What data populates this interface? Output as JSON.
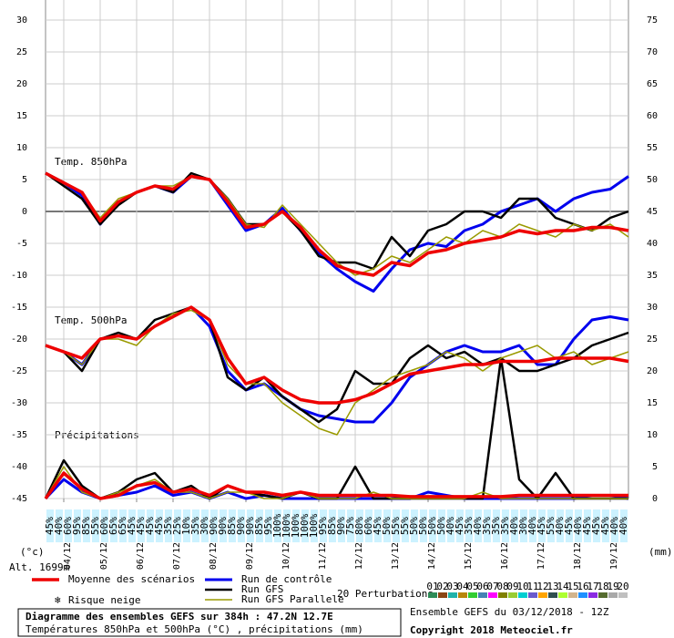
{
  "chart_data": {
    "type": "line",
    "title": "Diagramme des ensembles GEFS sur 384h : 47.2N 12.7E",
    "subtitle": "Températures 850hPa et 500hPa (°C) , précipitations (mm)",
    "run_info": "Ensemble GEFS du 03/12/2018 - 12Z",
    "copyright": "Copyright 2018 Meteociel.fr",
    "altitude": "Alt. 1699m",
    "y_unit": "(°c)",
    "y2_unit": "(mm)",
    "panel_labels": [
      "Temp. 850hPa",
      "Temp. 500hPa",
      "Précipitations"
    ],
    "snow_label": "Risque neige",
    "perturbations_label": "20 Perturbations",
    "perturbations": [
      {
        "label": "01",
        "color": "#2e8b57"
      },
      {
        "label": "02",
        "color": "#8b4513"
      },
      {
        "label": "03",
        "color": "#20b2aa"
      },
      {
        "label": "04",
        "color": "#b8860b"
      },
      {
        "label": "05",
        "color": "#32cd32"
      },
      {
        "label": "06",
        "color": "#4682b4"
      },
      {
        "label": "07",
        "color": "#ff00ff"
      },
      {
        "label": "08",
        "color": "#808000"
      },
      {
        "label": "09",
        "color": "#9acd32"
      },
      {
        "label": "10",
        "color": "#00ced1"
      },
      {
        "label": "11",
        "color": "#6a5acd"
      },
      {
        "label": "12",
        "color": "#ffa500"
      },
      {
        "label": "13",
        "color": "#2f4f4f"
      },
      {
        "label": "14",
        "color": "#adff2f"
      },
      {
        "label": "15",
        "color": "#d2b48c"
      },
      {
        "label": "16",
        "color": "#1e90ff"
      },
      {
        "label": "17",
        "color": "#8a2be2"
      },
      {
        "label": "18",
        "color": "#556b2f"
      },
      {
        "label": "19",
        "color": "#a9a9a9"
      },
      {
        "label": "20",
        "color": "#c0c0c0"
      }
    ],
    "xlim": [
      0,
      384
    ],
    "x": [
      0,
      12,
      24,
      36,
      48,
      60,
      72,
      84,
      96,
      108,
      120,
      132,
      144,
      156,
      168,
      180,
      192,
      204,
      216,
      228,
      240,
      252,
      264,
      276,
      288,
      300,
      312,
      324,
      336,
      348,
      360,
      372,
      384
    ],
    "xticks": [
      {
        "value": 12,
        "label": "04/12"
      },
      {
        "value": 36,
        "label": "05/12"
      },
      {
        "value": 60,
        "label": "06/12"
      },
      {
        "value": 84,
        "label": "07/12"
      },
      {
        "value": 108,
        "label": "08/12"
      },
      {
        "value": 132,
        "label": "09/12"
      },
      {
        "value": 156,
        "label": "10/12"
      },
      {
        "value": 180,
        "label": "11/12"
      },
      {
        "value": 204,
        "label": "12/12"
      },
      {
        "value": 228,
        "label": "13/12"
      },
      {
        "value": 252,
        "label": "14/12"
      },
      {
        "value": 276,
        "label": "15/12"
      },
      {
        "value": 300,
        "label": "16/12"
      },
      {
        "value": 324,
        "label": "17/12"
      },
      {
        "value": 348,
        "label": "18/12"
      },
      {
        "value": 372,
        "label": "19/12"
      }
    ],
    "ylim": [
      -45,
      30
    ],
    "yticks": [
      -45,
      -40,
      -35,
      -30,
      -25,
      -20,
      -15,
      -10,
      -5,
      0,
      5,
      10,
      15,
      20,
      25,
      30
    ],
    "y2lim": [
      0,
      75
    ],
    "y2ticks": [
      0,
      5,
      10,
      15,
      20,
      25,
      30,
      35,
      40,
      45,
      50,
      55,
      60,
      65,
      70,
      75
    ],
    "grid": true,
    "series": [
      {
        "name": "Run de contrôle",
        "color": "#0000ee",
        "width": 3,
        "t850": [
          6,
          4.5,
          2.5,
          -2,
          1.5,
          3,
          4,
          3,
          5.5,
          5,
          1,
          -3,
          -2,
          0.5,
          -3,
          -6.5,
          -9,
          -11,
          -12.5,
          -9,
          -6,
          -5,
          -5.5,
          -3,
          -2,
          0,
          1,
          2,
          0,
          2,
          3,
          3.5,
          5.5
        ],
        "t500": [
          -21,
          -22,
          -24,
          -20,
          -19.5,
          -20,
          -18,
          -16.5,
          -15,
          -18,
          -25,
          -28,
          -27,
          -29,
          -31,
          -32,
          -32.5,
          -33,
          -33,
          -30,
          -26,
          -24,
          -22,
          -21,
          -22,
          -22,
          -21,
          -24,
          -24,
          -20,
          -17,
          -16.5,
          -17
        ],
        "precip": [
          0,
          3,
          1,
          0,
          0.5,
          1,
          2,
          0.5,
          1,
          0,
          1,
          0,
          0.5,
          0,
          0,
          0,
          0,
          0,
          0,
          0,
          0,
          1,
          0.5,
          0,
          0,
          0,
          0,
          0,
          0,
          0,
          0.5,
          0.5,
          0
        ]
      },
      {
        "name": "Run GFS",
        "color": "#000000",
        "width": 2.5,
        "t850": [
          6,
          4,
          2,
          -2,
          1,
          3,
          4,
          3,
          6,
          5,
          2,
          -2,
          -2,
          0,
          -3,
          -7,
          -8,
          -8,
          -9,
          -4,
          -7,
          -3,
          -2,
          0,
          0,
          -1,
          2,
          2,
          -1,
          -2,
          -3,
          -1,
          0
        ],
        "t500": [
          -21,
          -22,
          -25,
          -20,
          -19,
          -20,
          -17,
          -16,
          -15,
          -17,
          -26,
          -28,
          -26,
          -29,
          -31,
          -33,
          -31,
          -25,
          -27,
          -27,
          -23,
          -21,
          -23,
          -22,
          -24,
          -23,
          -25,
          -25,
          -24,
          -23,
          -21,
          -20,
          -19
        ],
        "precip": [
          0,
          6,
          2,
          0,
          1,
          3,
          4,
          1,
          2,
          0,
          2,
          1,
          0.5,
          0,
          1,
          0,
          0,
          5,
          0,
          0,
          0,
          0,
          0,
          0,
          0,
          22,
          3,
          0,
          4,
          0,
          0,
          0,
          0
        ]
      },
      {
        "name": "Run GFS Parallele",
        "color": "#9a9a00",
        "width": 1.5,
        "t850": [
          6,
          4.5,
          3,
          -1,
          2,
          3,
          4,
          4,
          5.5,
          5,
          2,
          -2,
          -2.5,
          1,
          -2,
          -5,
          -8,
          -10,
          -9,
          -7,
          -8,
          -6,
          -4,
          -5,
          -3,
          -4,
          -2,
          -3,
          -4,
          -2,
          -3,
          -2,
          -4
        ],
        "t500": [
          -21,
          -22,
          -24,
          -20,
          -20,
          -21,
          -18,
          -16,
          -15.5,
          -17,
          -24,
          -27,
          -27,
          -30,
          -32,
          -34,
          -35,
          -30,
          -28,
          -26,
          -25,
          -24,
          -22,
          -23,
          -25,
          -23,
          -22,
          -21,
          -23,
          -22,
          -24,
          -23,
          -22
        ],
        "precip": [
          0,
          5,
          1,
          0,
          1,
          2,
          3,
          1,
          1,
          0,
          1,
          1,
          0,
          0,
          1,
          0,
          0,
          0,
          1,
          0,
          0,
          0,
          0,
          0,
          1,
          0,
          0,
          0,
          0,
          0,
          0,
          0,
          0
        ]
      },
      {
        "name": "Moyenne des scénarios",
        "color": "#ee0000",
        "width": 3.5,
        "t850": [
          6,
          4.5,
          3,
          -1.5,
          1.5,
          3,
          4,
          3.5,
          5.5,
          5,
          1.5,
          -2.5,
          -2,
          0,
          -2.5,
          -6,
          -8.5,
          -9.5,
          -10,
          -8,
          -8.5,
          -6.5,
          -6,
          -5,
          -4.5,
          -4,
          -3,
          -3.5,
          -3,
          -3,
          -2.5,
          -2.5,
          -3
        ],
        "t500": [
          -21,
          -22,
          -23,
          -20,
          -19.5,
          -20,
          -18,
          -16.5,
          -15,
          -17,
          -23,
          -27,
          -26,
          -28,
          -29.5,
          -30,
          -30,
          -29.5,
          -28.5,
          -27,
          -25.5,
          -25,
          -24.5,
          -24,
          -24,
          -23.5,
          -23.5,
          -23.5,
          -23,
          -23,
          -23,
          -23,
          -23.5
        ],
        "precip": [
          0,
          4,
          1.5,
          0,
          0.5,
          2,
          2.5,
          1,
          1.5,
          0.5,
          2,
          1,
          1,
          0.5,
          1,
          0.5,
          0.5,
          0.5,
          0.5,
          0.5,
          0.3,
          0.3,
          0.3,
          0.3,
          0.3,
          0.3,
          0.5,
          0.5,
          0.5,
          0.5,
          0.5,
          0.5,
          0.5
        ]
      }
    ],
    "snow_risk": [
      "45%",
      "40%",
      "60%",
      "95%",
      "85%",
      "55%",
      "60%",
      "65%",
      "65%",
      "45%",
      "45%",
      "45%",
      "45%",
      "35%",
      "25%",
      "10%",
      "35%",
      "30%",
      "90%",
      "90%",
      "85%",
      "90%",
      "90%",
      "85%",
      "95%",
      "100%",
      "100%",
      "100%",
      "100%",
      "100%",
      "95%",
      "85%",
      "90%",
      "75%",
      "80%",
      "60%",
      "45%",
      "50%",
      "55%",
      "55%",
      "50%",
      "50%",
      "50%",
      "50%",
      "40%",
      "45%",
      "35%",
      "40%",
      "35%",
      "35%",
      "35%",
      "40%",
      "30%",
      "40%",
      "45%",
      "55%",
      "40%",
      "45%",
      "40%",
      "45%",
      "45%",
      "45%",
      "40%",
      "40%"
    ]
  }
}
